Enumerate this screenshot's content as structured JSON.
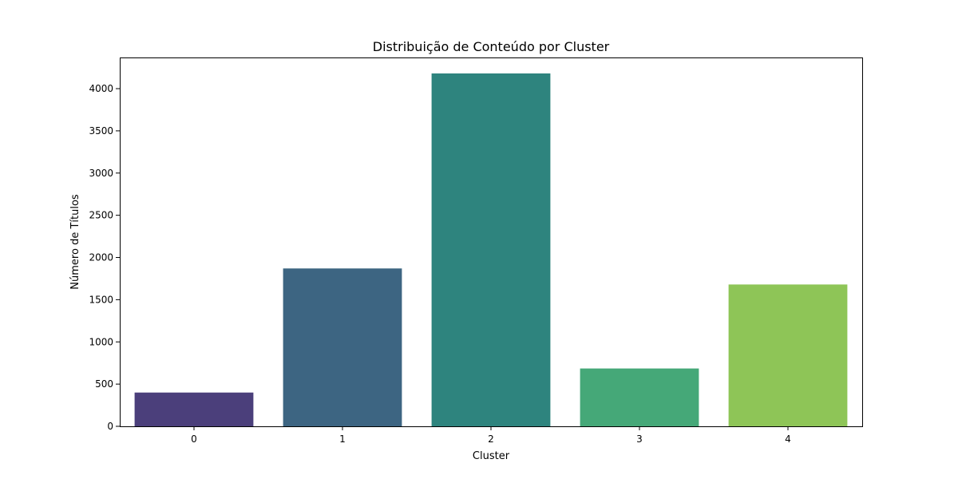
{
  "chart_data": {
    "type": "bar",
    "title": "Distribuição de Conteúdo por Cluster",
    "xlabel": "Cluster",
    "ylabel": "Número de Títulos",
    "categories": [
      "0",
      "1",
      "2",
      "3",
      "4"
    ],
    "values": [
      400,
      1870,
      4180,
      685,
      1680
    ],
    "ylim": [
      0,
      4180
    ],
    "yticks": [
      0,
      500,
      1000,
      1500,
      2000,
      2500,
      3000,
      3500,
      4000
    ],
    "colors": [
      "#4b3f7b",
      "#3d6582",
      "#2e847e",
      "#45a878",
      "#8ec557"
    ],
    "grid": false,
    "legend": "none"
  }
}
